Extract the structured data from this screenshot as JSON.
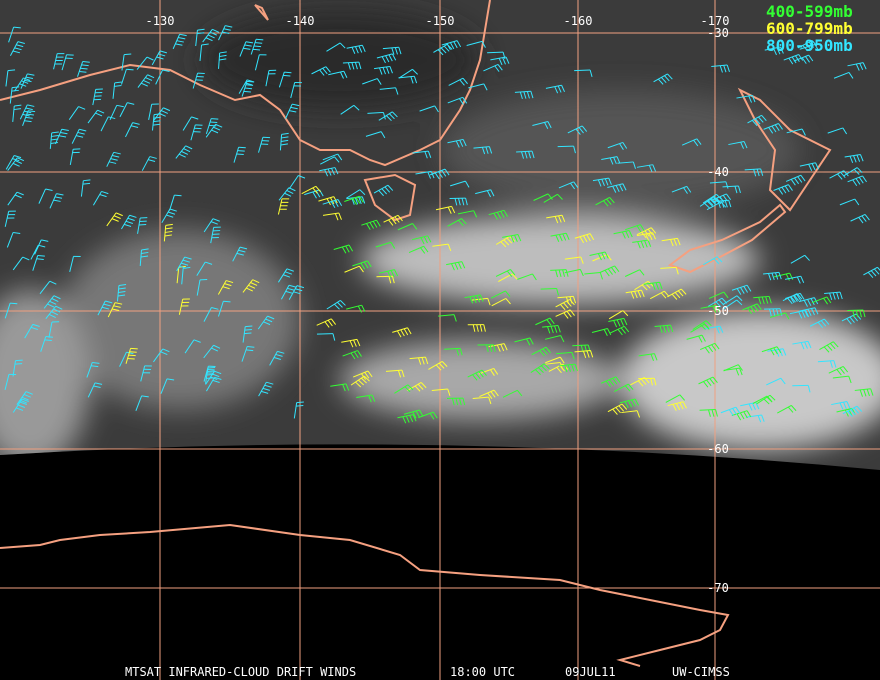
{
  "map": {
    "longitude_labels": [
      "-130",
      "-140",
      "-150",
      "-160",
      "-170"
    ],
    "latitude_labels": [
      "-30",
      "-40",
      "-50",
      "-60",
      "-70"
    ],
    "legend": [
      {
        "label": "400-599mb",
        "color": "#33ff33"
      },
      {
        "label": "600-799mb",
        "color": "#ffff33"
      },
      {
        "label": "800-950mb",
        "color": "#33e5ff"
      }
    ],
    "footer": {
      "product": "MTSAT INFRARED-CLOUD DRIFT WINDS",
      "time": "18:00 UTC",
      "date": "09JUL11",
      "source": "UW-CIMSS"
    }
  }
}
